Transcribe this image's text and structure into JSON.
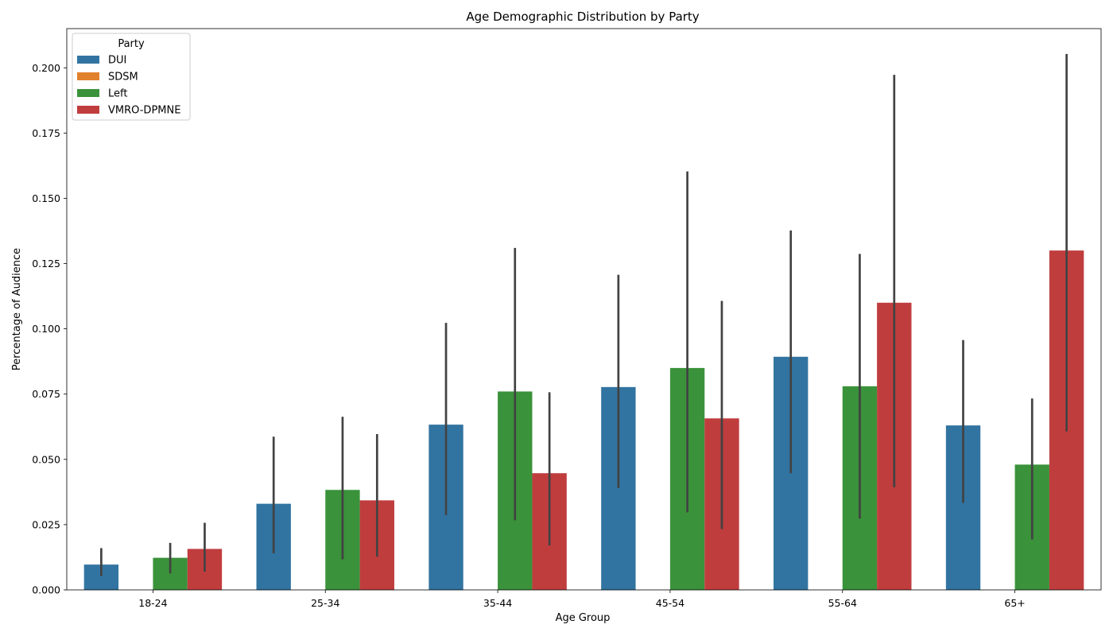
{
  "chart_data": {
    "type": "bar",
    "title": "Age Demographic Distribution by Party",
    "xlabel": "Age Group",
    "ylabel": "Percentage of Audience",
    "categories": [
      "18-24",
      "25-34",
      "35-44",
      "45-54",
      "55-64",
      "65+"
    ],
    "ylim": [
      0,
      0.215
    ],
    "yticks": [
      0.0,
      0.025,
      0.05,
      0.075,
      0.1,
      0.125,
      0.15,
      0.175,
      0.2
    ],
    "ytick_labels": [
      "0.000",
      "0.025",
      "0.050",
      "0.075",
      "0.100",
      "0.125",
      "0.150",
      "0.175",
      "0.200"
    ],
    "legend": {
      "title": "Party",
      "placement": "top-left"
    },
    "grid": false,
    "series": [
      {
        "name": "DUI",
        "color": "#3274a1",
        "values": [
          0.0097,
          0.033,
          0.0633,
          0.0777,
          0.0893,
          0.063
        ],
        "error_low": [
          0.0053,
          0.014,
          0.0287,
          0.039,
          0.0447,
          0.0333
        ],
        "error_high": [
          0.016,
          0.0587,
          0.1023,
          0.1207,
          0.1377,
          0.0957
        ]
      },
      {
        "name": "SDSM",
        "color": "#e1812c",
        "values": [
          0,
          0,
          0,
          0,
          0,
          0
        ],
        "error_low": [
          null,
          null,
          null,
          null,
          null,
          null
        ],
        "error_high": [
          null,
          null,
          null,
          null,
          null,
          null
        ]
      },
      {
        "name": "Left",
        "color": "#3a923a",
        "values": [
          0.0123,
          0.0383,
          0.076,
          0.085,
          0.078,
          0.048
        ],
        "error_low": [
          0.0063,
          0.0117,
          0.0267,
          0.0297,
          0.0273,
          0.0193
        ],
        "error_high": [
          0.018,
          0.0663,
          0.131,
          0.1603,
          0.1287,
          0.0733
        ]
      },
      {
        "name": "VMRO-DPMNE",
        "color": "#c03d3e",
        "values": [
          0.0157,
          0.0343,
          0.0447,
          0.0657,
          0.11,
          0.13
        ],
        "error_low": [
          0.007,
          0.0127,
          0.017,
          0.0233,
          0.0393,
          0.0607
        ],
        "error_high": [
          0.0257,
          0.0597,
          0.0757,
          0.1107,
          0.1973,
          0.2053
        ]
      }
    ]
  }
}
